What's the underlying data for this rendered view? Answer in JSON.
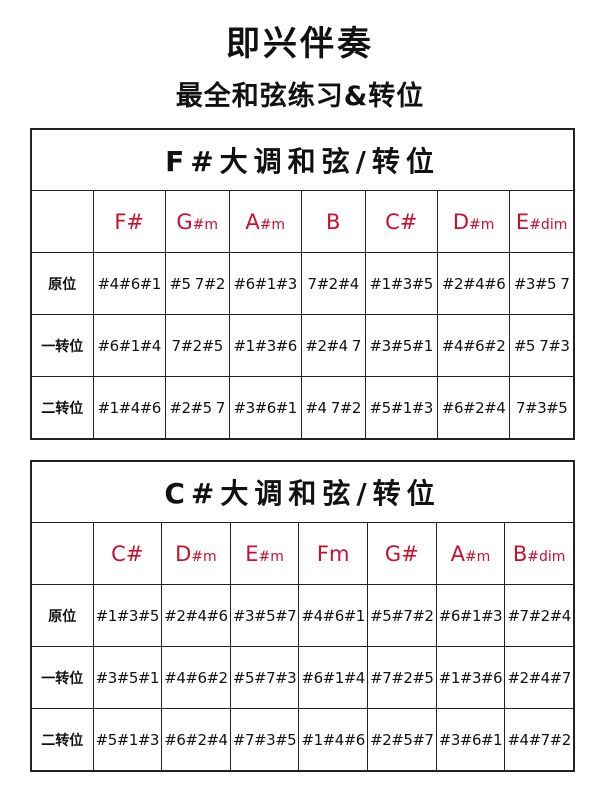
{
  "title": "即兴伴奏",
  "subtitle": "最全和弦练习&转位",
  "accent_color": "#c8102e",
  "tables": [
    {
      "title": "F#大调和弦/转位",
      "chords": [
        {
          "root": "F#",
          "suffix": ""
        },
        {
          "root": "G",
          "suffix": "#m"
        },
        {
          "root": "A",
          "suffix": "#m"
        },
        {
          "root": "B",
          "suffix": ""
        },
        {
          "root": "C#",
          "suffix": ""
        },
        {
          "root": "D",
          "suffix": "#m"
        },
        {
          "root": "E",
          "suffix": "#dim"
        }
      ],
      "rows": [
        {
          "label": "原位",
          "cells": [
            "#4#6#1",
            "#5 7#2",
            "#6#1#3",
            "7#2#4",
            "#1#3#5",
            "#2#4#6",
            "#3#5 7"
          ]
        },
        {
          "label": "一转位",
          "cells": [
            "#6#1#4",
            "7#2#5",
            "#1#3#6",
            "#2#4 7",
            "#3#5#1",
            "#4#6#2",
            "#5 7#3"
          ]
        },
        {
          "label": "二转位",
          "cells": [
            "#1#4#6",
            "#2#5 7",
            "#3#6#1",
            "#4 7#2",
            "#5#1#3",
            "#6#2#4",
            "7#3#5"
          ]
        }
      ]
    },
    {
      "title": "C#大调和弦/转位",
      "chords": [
        {
          "root": "C#",
          "suffix": ""
        },
        {
          "root": "D",
          "suffix": "#m"
        },
        {
          "root": "E",
          "suffix": "#m"
        },
        {
          "root": "Fm",
          "suffix": ""
        },
        {
          "root": "G#",
          "suffix": ""
        },
        {
          "root": "A",
          "suffix": "#m"
        },
        {
          "root": "B",
          "suffix": "#dim"
        }
      ],
      "rows": [
        {
          "label": "原位",
          "cells": [
            "#1#3#5",
            "#2#4#6",
            "#3#5#7",
            "#4#6#1",
            "#5#7#2",
            "#6#1#3",
            "#7#2#4"
          ]
        },
        {
          "label": "一转位",
          "cells": [
            "#3#5#1",
            "#4#6#2",
            "#5#7#3",
            "#6#1#4",
            "#7#2#5",
            "#1#3#6",
            "#2#4#7"
          ]
        },
        {
          "label": "二转位",
          "cells": [
            "#5#1#3",
            "#6#2#4",
            "#7#3#5",
            "#1#4#6",
            "#2#5#7",
            "#3#6#1",
            "#4#7#2"
          ]
        }
      ]
    }
  ]
}
